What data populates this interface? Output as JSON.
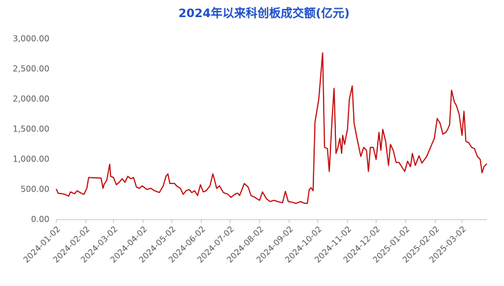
{
  "chart_data": {
    "type": "line",
    "title": "2024年以来科创板成交额(亿元)",
    "x": [
      "2024-01-02",
      "2024-01-04",
      "2024-01-08",
      "2024-01-11",
      "2024-01-15",
      "2024-01-17",
      "2024-01-21",
      "2024-01-24",
      "2024-01-28",
      "2024-01-31",
      "2024-02-03",
      "2024-02-05",
      "2024-02-18",
      "2024-02-20",
      "2024-02-21",
      "2024-02-24",
      "2024-02-27",
      "2024-02-28",
      "2024-03-02",
      "2024-03-05",
      "2024-03-08",
      "2024-03-11",
      "2024-03-14",
      "2024-03-17",
      "2024-03-20",
      "2024-03-23",
      "2024-03-26",
      "2024-03-29",
      "2024-04-01",
      "2024-04-06",
      "2024-04-10",
      "2024-04-14",
      "2024-04-19",
      "2024-04-23",
      "2024-04-26",
      "2024-04-28",
      "2024-04-30",
      "2024-05-05",
      "2024-05-07",
      "2024-05-11",
      "2024-05-14",
      "2024-05-17",
      "2024-05-20",
      "2024-05-23",
      "2024-05-26",
      "2024-05-29",
      "2024-06-01",
      "2024-06-04",
      "2024-06-07",
      "2024-06-11",
      "2024-06-14",
      "2024-06-16",
      "2024-06-18",
      "2024-06-21",
      "2024-06-25",
      "2024-06-30",
      "2024-07-03",
      "2024-07-07",
      "2024-07-10",
      "2024-07-12",
      "2024-07-17",
      "2024-07-21",
      "2024-07-24",
      "2024-07-28",
      "2024-08-02",
      "2024-08-05",
      "2024-08-09",
      "2024-08-13",
      "2024-08-17",
      "2024-08-21",
      "2024-08-26",
      "2024-08-29",
      "2024-09-01",
      "2024-09-05",
      "2024-09-09",
      "2024-09-14",
      "2024-09-18",
      "2024-09-21",
      "2024-09-23",
      "2024-09-25",
      "2024-09-27",
      "2024-09-29",
      "2024-10-03",
      "2024-10-07",
      "2024-10-09",
      "2024-10-12",
      "2024-10-14",
      "2024-10-17",
      "2024-10-19",
      "2024-10-21",
      "2024-10-23",
      "2024-10-25",
      "2024-10-27",
      "2024-10-28",
      "2024-10-30",
      "2024-11-02",
      "2024-11-04",
      "2024-11-07",
      "2024-11-09",
      "2024-11-12",
      "2024-11-16",
      "2024-11-19",
      "2024-11-22",
      "2024-11-24",
      "2024-11-26",
      "2024-11-29",
      "2024-12-02",
      "2024-12-05",
      "2024-12-07",
      "2024-12-09",
      "2024-12-12",
      "2024-12-15",
      "2024-12-17",
      "2024-12-20",
      "2024-12-23",
      "2024-12-26",
      "2025-01-01",
      "2025-01-04",
      "2025-01-07",
      "2025-01-09",
      "2025-01-12",
      "2025-01-16",
      "2025-01-19",
      "2025-01-24",
      "2025-01-28",
      "2025-02-01",
      "2025-02-04",
      "2025-02-07",
      "2025-02-10",
      "2025-02-13",
      "2025-02-15",
      "2025-02-17",
      "2025-02-19",
      "2025-02-22",
      "2025-02-24",
      "2025-02-27",
      "2025-03-02",
      "2025-03-04",
      "2025-03-06",
      "2025-03-09",
      "2025-03-12",
      "2025-03-15",
      "2025-03-18",
      "2025-03-21",
      "2025-03-23",
      "2025-03-25",
      "2025-03-28"
    ],
    "series": [
      {
        "name": "成交额",
        "color": "#c00000",
        "values": [
          510,
          440,
          430,
          420,
          390,
          460,
          430,
          480,
          440,
          420,
          520,
          700,
          690,
          520,
          580,
          660,
          920,
          720,
          700,
          580,
          620,
          680,
          620,
          720,
          680,
          700,
          540,
          520,
          560,
          500,
          520,
          480,
          450,
          560,
          720,
          760,
          600,
          600,
          560,
          520,
          420,
          480,
          500,
          450,
          480,
          400,
          580,
          460,
          480,
          560,
          760,
          650,
          520,
          560,
          450,
          420,
          370,
          420,
          440,
          400,
          600,
          540,
          400,
          370,
          320,
          460,
          350,
          300,
          320,
          300,
          280,
          470,
          300,
          290,
          270,
          300,
          270,
          270,
          500,
          530,
          480,
          1620,
          2000,
          2770,
          1200,
          1180,
          800,
          1700,
          2180,
          1100,
          1200,
          1350,
          1100,
          1400,
          1250,
          1500,
          2000,
          2220,
          1600,
          1350,
          1050,
          1200,
          1150,
          800,
          1200,
          1200,
          1000,
          1450,
          1150,
          1500,
          1300,
          900,
          1250,
          1150,
          950,
          950,
          800,
          970,
          880,
          1100,
          900,
          1060,
          940,
          1050,
          1200,
          1350,
          1680,
          1600,
          1420,
          1450,
          1500,
          1580,
          2150,
          1950,
          1900,
          1750,
          1400,
          1800,
          1300,
          1280,
          1200,
          1180,
          1050,
          1000,
          780,
          880,
          930
        ]
      }
    ],
    "xlim": [
      "2024-01-02",
      "2025-03-28"
    ],
    "xticks": [
      "2024-01-02",
      "2024-02-02",
      "2024-03-02",
      "2024-04-02",
      "2024-05-02",
      "2024-06-02",
      "2024-07-02",
      "2024-08-02",
      "2024-09-02",
      "2024-10-02",
      "2024-11-02",
      "2024-12-02",
      "2025-01-02",
      "2025-02-02",
      "2025-03-02"
    ],
    "ylim": [
      0,
      3000
    ],
    "yticks": [
      {
        "value": 0,
        "label": "0.00"
      },
      {
        "value": 500,
        "label": "500.00"
      },
      {
        "value": 1000,
        "label": "1,000.00"
      },
      {
        "value": 1500,
        "label": "1,500.00"
      },
      {
        "value": 2000,
        "label": "2,000.00"
      },
      {
        "value": 2500,
        "label": "2,500.00"
      },
      {
        "value": 3000,
        "label": "3,000.00"
      }
    ],
    "grid": false
  }
}
